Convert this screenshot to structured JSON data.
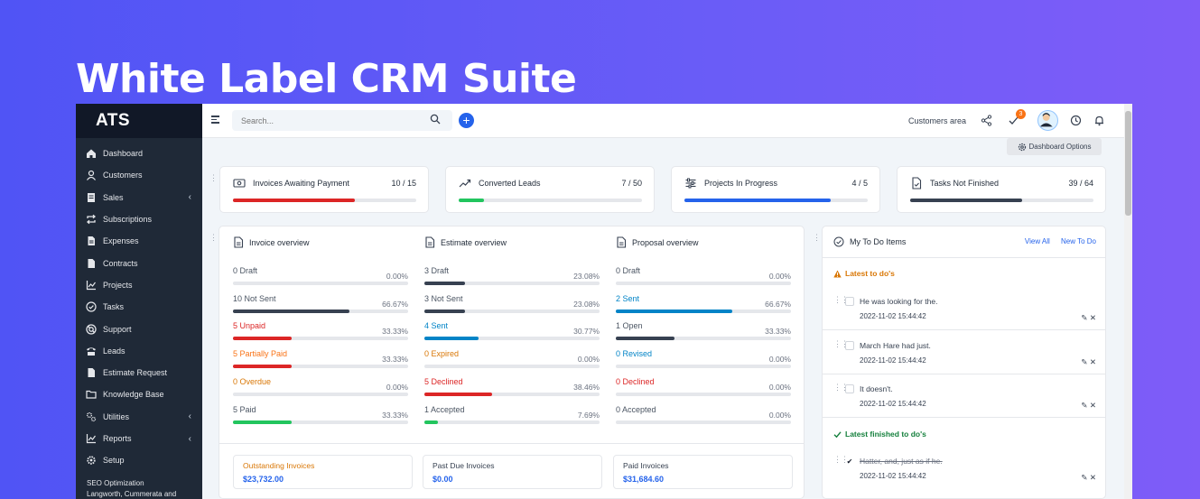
{
  "hero": {
    "title": "White Label CRM Suite"
  },
  "sidebar": {
    "brand": "ATS",
    "items": [
      {
        "label": "Dashboard",
        "icon": "home-icon",
        "chevron": false
      },
      {
        "label": "Customers",
        "icon": "user-icon",
        "chevron": false
      },
      {
        "label": "Sales",
        "icon": "receipt-icon",
        "chevron": true
      },
      {
        "label": "Subscriptions",
        "icon": "repeat-icon",
        "chevron": false
      },
      {
        "label": "Expenses",
        "icon": "file-text-icon",
        "chevron": false
      },
      {
        "label": "Contracts",
        "icon": "file-icon",
        "chevron": false
      },
      {
        "label": "Projects",
        "icon": "chart-icon",
        "chevron": false
      },
      {
        "label": "Tasks",
        "icon": "check-circle-icon",
        "chevron": false
      },
      {
        "label": "Support",
        "icon": "lifebuoy-icon",
        "chevron": false
      },
      {
        "label": "Leads",
        "icon": "tty-icon",
        "chevron": false
      },
      {
        "label": "Estimate Request",
        "icon": "file-icon",
        "chevron": false
      },
      {
        "label": "Knowledge Base",
        "icon": "folder-icon",
        "chevron": false
      },
      {
        "label": "Utilities",
        "icon": "cogs-icon",
        "chevron": true
      },
      {
        "label": "Reports",
        "icon": "chart-icon",
        "chevron": true
      },
      {
        "label": "Setup",
        "icon": "gear-icon",
        "chevron": false
      }
    ],
    "footer_line1": "SEO Optimization",
    "footer_line2": "Langworth, Cummerata and"
  },
  "topbar": {
    "search_placeholder": "Search...",
    "customers_area": "Customers area",
    "todo_badge": "3"
  },
  "dashboard_options": "Dashboard Options",
  "stats": [
    {
      "title": "Invoices Awaiting Payment",
      "value": "10 / 15",
      "fraction": 0.667,
      "color": "#dc2626",
      "icon": "money-icon"
    },
    {
      "title": "Converted Leads",
      "value": "7 / 50",
      "fraction": 0.14,
      "color": "#22c55e",
      "icon": "trend-up-icon"
    },
    {
      "title": "Projects In Progress",
      "value": "4 / 5",
      "fraction": 0.8,
      "color": "#2563eb",
      "icon": "sliders-icon"
    },
    {
      "title": "Tasks Not Finished",
      "value": "39 / 64",
      "fraction": 0.609,
      "color": "#374151",
      "icon": "file-check-icon"
    }
  ],
  "overview": {
    "columns": [
      {
        "title": "Invoice overview",
        "rows": [
          {
            "label": "Draft",
            "count": "0",
            "pct": "0.00%",
            "fraction": 0,
            "color": "#4b5563"
          },
          {
            "label": "Not Sent",
            "count": "10",
            "pct": "66.67%",
            "fraction": 0.6667,
            "color": "#4b5563",
            "bar": "#374151"
          },
          {
            "label": "Unpaid",
            "count": "5",
            "pct": "33.33%",
            "fraction": 0.3333,
            "color": "#dc2626",
            "bar": "#dc2626"
          },
          {
            "label": "Partially Paid",
            "count": "5",
            "pct": "33.33%",
            "fraction": 0.3333,
            "color": "#f97316",
            "bar": "#dc2626"
          },
          {
            "label": "Overdue",
            "count": "0",
            "pct": "0.00%",
            "fraction": 0,
            "color": "#d97706"
          },
          {
            "label": "Paid",
            "count": "5",
            "pct": "33.33%",
            "fraction": 0.3333,
            "color": "#4b5563",
            "bar": "#22c55e"
          }
        ]
      },
      {
        "title": "Estimate overview",
        "rows": [
          {
            "label": "Draft",
            "count": "3",
            "pct": "23.08%",
            "fraction": 0.2308,
            "color": "#4b5563",
            "bar": "#374151"
          },
          {
            "label": "Not Sent",
            "count": "3",
            "pct": "23.08%",
            "fraction": 0.2308,
            "color": "#4b5563",
            "bar": "#374151"
          },
          {
            "label": "Sent",
            "count": "4",
            "pct": "30.77%",
            "fraction": 0.3077,
            "color": "#0284c7",
            "bar": "#0284c7"
          },
          {
            "label": "Expired",
            "count": "0",
            "pct": "0.00%",
            "fraction": 0,
            "color": "#d97706"
          },
          {
            "label": "Declined",
            "count": "5",
            "pct": "38.46%",
            "fraction": 0.3846,
            "color": "#dc2626",
            "bar": "#dc2626"
          },
          {
            "label": "Accepted",
            "count": "1",
            "pct": "7.69%",
            "fraction": 0.0769,
            "color": "#4b5563",
            "bar": "#22c55e"
          }
        ]
      },
      {
        "title": "Proposal overview",
        "rows": [
          {
            "label": "Draft",
            "count": "0",
            "pct": "0.00%",
            "fraction": 0,
            "color": "#4b5563"
          },
          {
            "label": "Sent",
            "count": "2",
            "pct": "66.67%",
            "fraction": 0.6667,
            "color": "#0284c7",
            "bar": "#0284c7"
          },
          {
            "label": "Open",
            "count": "1",
            "pct": "33.33%",
            "fraction": 0.3333,
            "color": "#4b5563",
            "bar": "#374151"
          },
          {
            "label": "Revised",
            "count": "0",
            "pct": "0.00%",
            "fraction": 0,
            "color": "#0284c7"
          },
          {
            "label": "Declined",
            "count": "0",
            "pct": "0.00%",
            "fraction": 0,
            "color": "#dc2626"
          },
          {
            "label": "Accepted",
            "count": "0",
            "pct": "0.00%",
            "fraction": 0,
            "color": "#4b5563"
          }
        ]
      }
    ],
    "summaries": [
      {
        "label": "Outstanding Invoices",
        "value": "$23,732.00",
        "color": "#d97706"
      },
      {
        "label": "Past Due Invoices",
        "value": "$0.00",
        "color": "#374151"
      },
      {
        "label": "Paid Invoices",
        "value": "$31,684.60",
        "color": "#374151"
      }
    ]
  },
  "todo": {
    "title": "My To Do Items",
    "view_all": "View All",
    "new_todo": "New To Do",
    "latest_title": "Latest to do's",
    "finished_title": "Latest finished to do's",
    "latest": [
      {
        "text": "He was looking for the.",
        "date": "2022-11-02 15:44:42"
      },
      {
        "text": "March Hare had just.",
        "date": "2022-11-02 15:44:42"
      },
      {
        "text": "It doesn't.",
        "date": "2022-11-02 15:44:42"
      }
    ],
    "finished": [
      {
        "text": "Hatter, and, just as if he.",
        "date": "2022-11-02 15:44:42"
      }
    ]
  }
}
